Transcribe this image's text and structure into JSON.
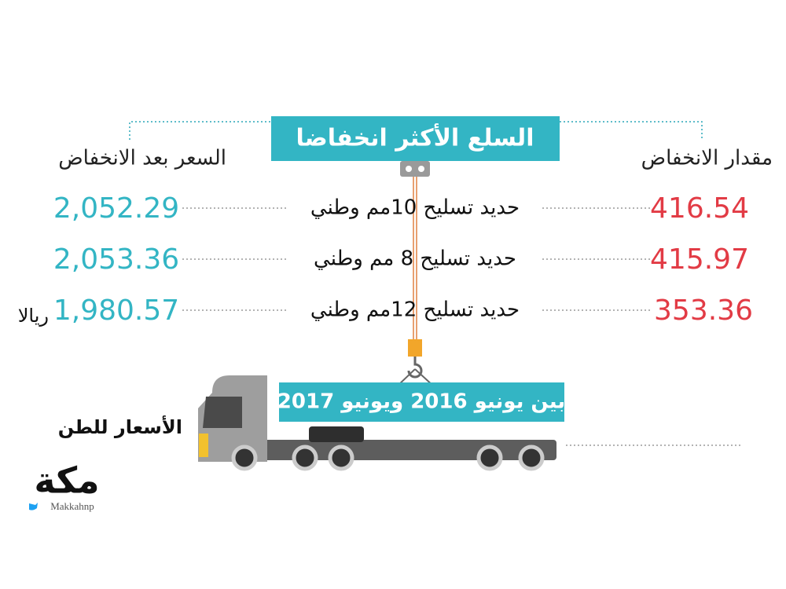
{
  "title": "السلع الأكثر انخفاضا",
  "columns": {
    "decrease": "مقدار الانخفاض",
    "price_after": "السعر بعد الانخفاض"
  },
  "rows": [
    {
      "item": "حديد تسليح 10مم وطني",
      "decrease": "416.54",
      "price_after": "2,052.29"
    },
    {
      "item": "حديد تسليح 8 مم وطني",
      "decrease": "415.97",
      "price_after": "2,053.36"
    },
    {
      "item": "حديد تسليح 12مم وطني",
      "decrease": "353.36",
      "price_after": "1,980.57"
    }
  ],
  "unit": "ريالا",
  "period": "بين يونيو 2016 ويونيو 2017",
  "note": "الأسعار للطن",
  "logo": {
    "name": "مكة",
    "handle": "Makkahnp"
  }
}
